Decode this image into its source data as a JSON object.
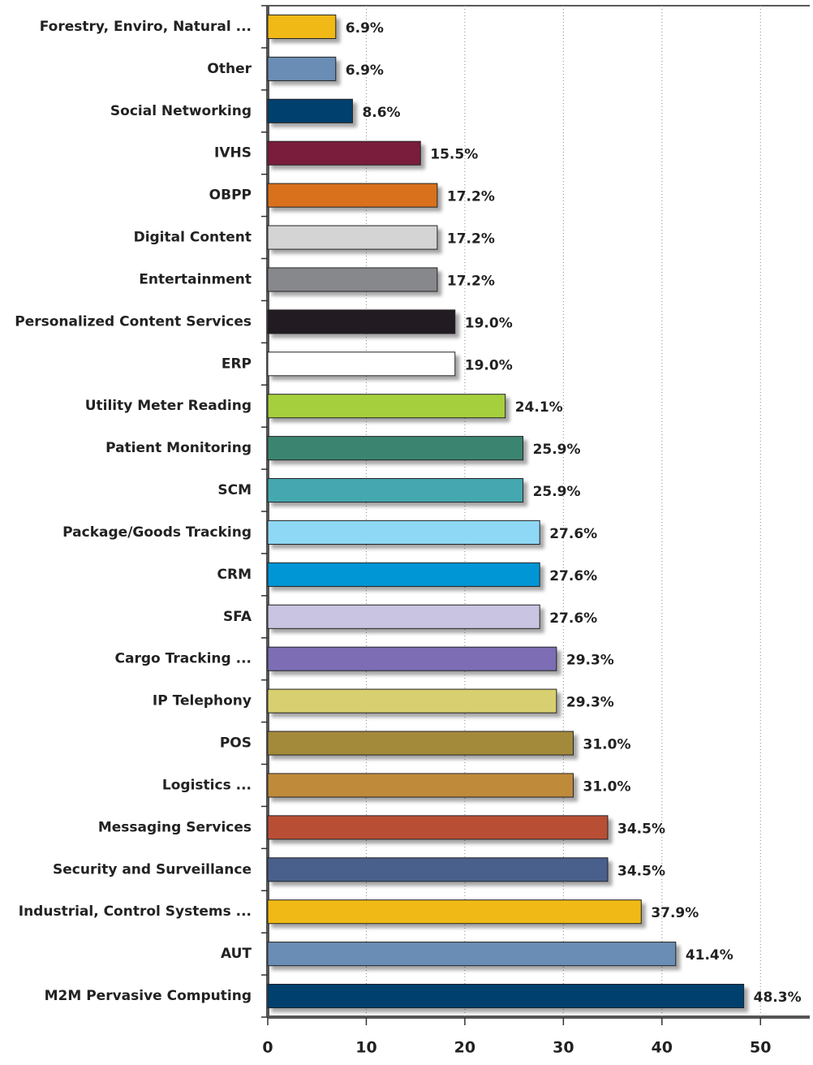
{
  "chart_data": {
    "type": "bar",
    "orientation": "horizontal",
    "categories": [
      "Forestry, Enviro, Natural ...",
      "Other",
      "Social Networking",
      "IVHS",
      "OBPP",
      "Digital Content",
      "Entertainment",
      "Personalized Content Services",
      "ERP",
      "Utility Meter Reading",
      "Patient Monitoring",
      "SCM",
      "Package/Goods Tracking",
      "CRM",
      "SFA",
      "Cargo Tracking ...",
      "IP Telephony",
      "POS",
      "Logistics ...",
      "Messaging Services",
      "Security and Surveillance",
      "Industrial, Control Systems ...",
      "AUT",
      "M2M Pervasive Computing"
    ],
    "values": [
      6.9,
      6.9,
      8.6,
      15.5,
      17.2,
      17.2,
      17.2,
      19.0,
      19.0,
      24.1,
      25.9,
      25.9,
      27.6,
      27.6,
      27.6,
      29.3,
      29.3,
      31.0,
      31.0,
      34.5,
      34.5,
      37.9,
      41.4,
      48.3
    ],
    "value_labels": [
      "6.9%",
      "6.9%",
      "8.6%",
      "15.5%",
      "17.2%",
      "17.2%",
      "17.2%",
      "19.0%",
      "19.0%",
      "24.1%",
      "25.9%",
      "25.9%",
      "27.6%",
      "27.6%",
      "27.6%",
      "29.3%",
      "29.3%",
      "31.0%",
      "31.0%",
      "34.5%",
      "34.5%",
      "37.9%",
      "41.4%",
      "48.3%"
    ],
    "colors": [
      "#f0b914",
      "#6a8db5",
      "#003f6e",
      "#7a1a3a",
      "#d9711c",
      "#d4d4d4",
      "#87888c",
      "#231f20",
      "#ffffff",
      "#a6cf3c",
      "#3a8570",
      "#45a8b0",
      "#8fd8f5",
      "#0096d6",
      "#c8c4e2",
      "#7b6db5",
      "#d8d070",
      "#a38a3a",
      "#c08a3a",
      "#b84f35",
      "#4a5e8c",
      "#f0b914",
      "#6a8db5",
      "#003f6e"
    ],
    "xlim": [
      0,
      55
    ],
    "xticks": [
      0,
      10,
      20,
      30,
      40,
      50
    ],
    "grid": true
  }
}
